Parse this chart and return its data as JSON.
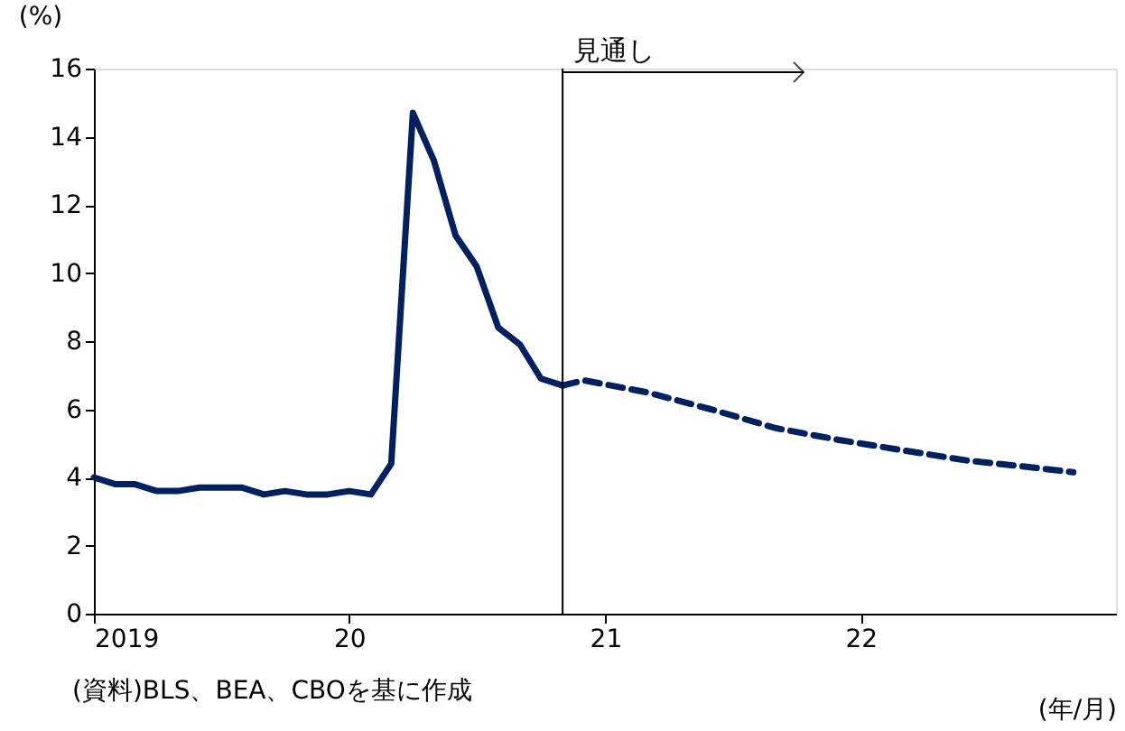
{
  "chart_data": {
    "type": "line",
    "ylabel": "(%)",
    "xlabel": "(年/月)",
    "xlim": [
      "2019-01",
      "2023-01"
    ],
    "ylim": [
      0,
      16
    ],
    "yticks": [
      0,
      2,
      4,
      6,
      8,
      10,
      12,
      14,
      16
    ],
    "xticks": [
      {
        "value": "2019-01",
        "label": "2019"
      },
      {
        "value": "2020-01",
        "label": "20"
      },
      {
        "value": "2021-01",
        "label": "21"
      },
      {
        "value": "2022-01",
        "label": "22"
      }
    ],
    "series": [
      {
        "color": "#002060",
        "line_style": "solid",
        "x": [
          "2019-01",
          "2019-02",
          "2019-03",
          "2019-04",
          "2019-05",
          "2019-06",
          "2019-07",
          "2019-08",
          "2019-09",
          "2019-10",
          "2019-11",
          "2019-12",
          "2020-01",
          "2020-02",
          "2020-03",
          "2020-04",
          "2020-05",
          "2020-06",
          "2020-07",
          "2020-08",
          "2020-09",
          "2020-10",
          "2020-11"
        ],
        "values": [
          4.0,
          3.8,
          3.8,
          3.6,
          3.6,
          3.7,
          3.7,
          3.7,
          3.5,
          3.6,
          3.5,
          3.5,
          3.6,
          3.5,
          4.4,
          14.7,
          13.3,
          11.1,
          10.2,
          8.4,
          7.9,
          6.9,
          6.7
        ]
      },
      {
        "color": "#002060",
        "line_style": "dashed",
        "x": [
          "2020-11",
          "2020-12",
          "2021-03",
          "2021-06",
          "2021-09",
          "2021-12",
          "2022-03",
          "2022-06",
          "2022-09",
          "2022-11"
        ],
        "values": [
          6.7,
          6.85,
          6.5,
          6.0,
          5.45,
          5.1,
          4.8,
          4.5,
          4.3,
          4.15
        ]
      }
    ],
    "ref_lines": [
      {
        "axis": "x",
        "value": "2020-11",
        "label": "見通し",
        "color": "#000000"
      }
    ],
    "annotations": [
      "(資料)BLS、BEA、CBOを基に作成"
    ],
    "grid": false,
    "marker": "none"
  }
}
